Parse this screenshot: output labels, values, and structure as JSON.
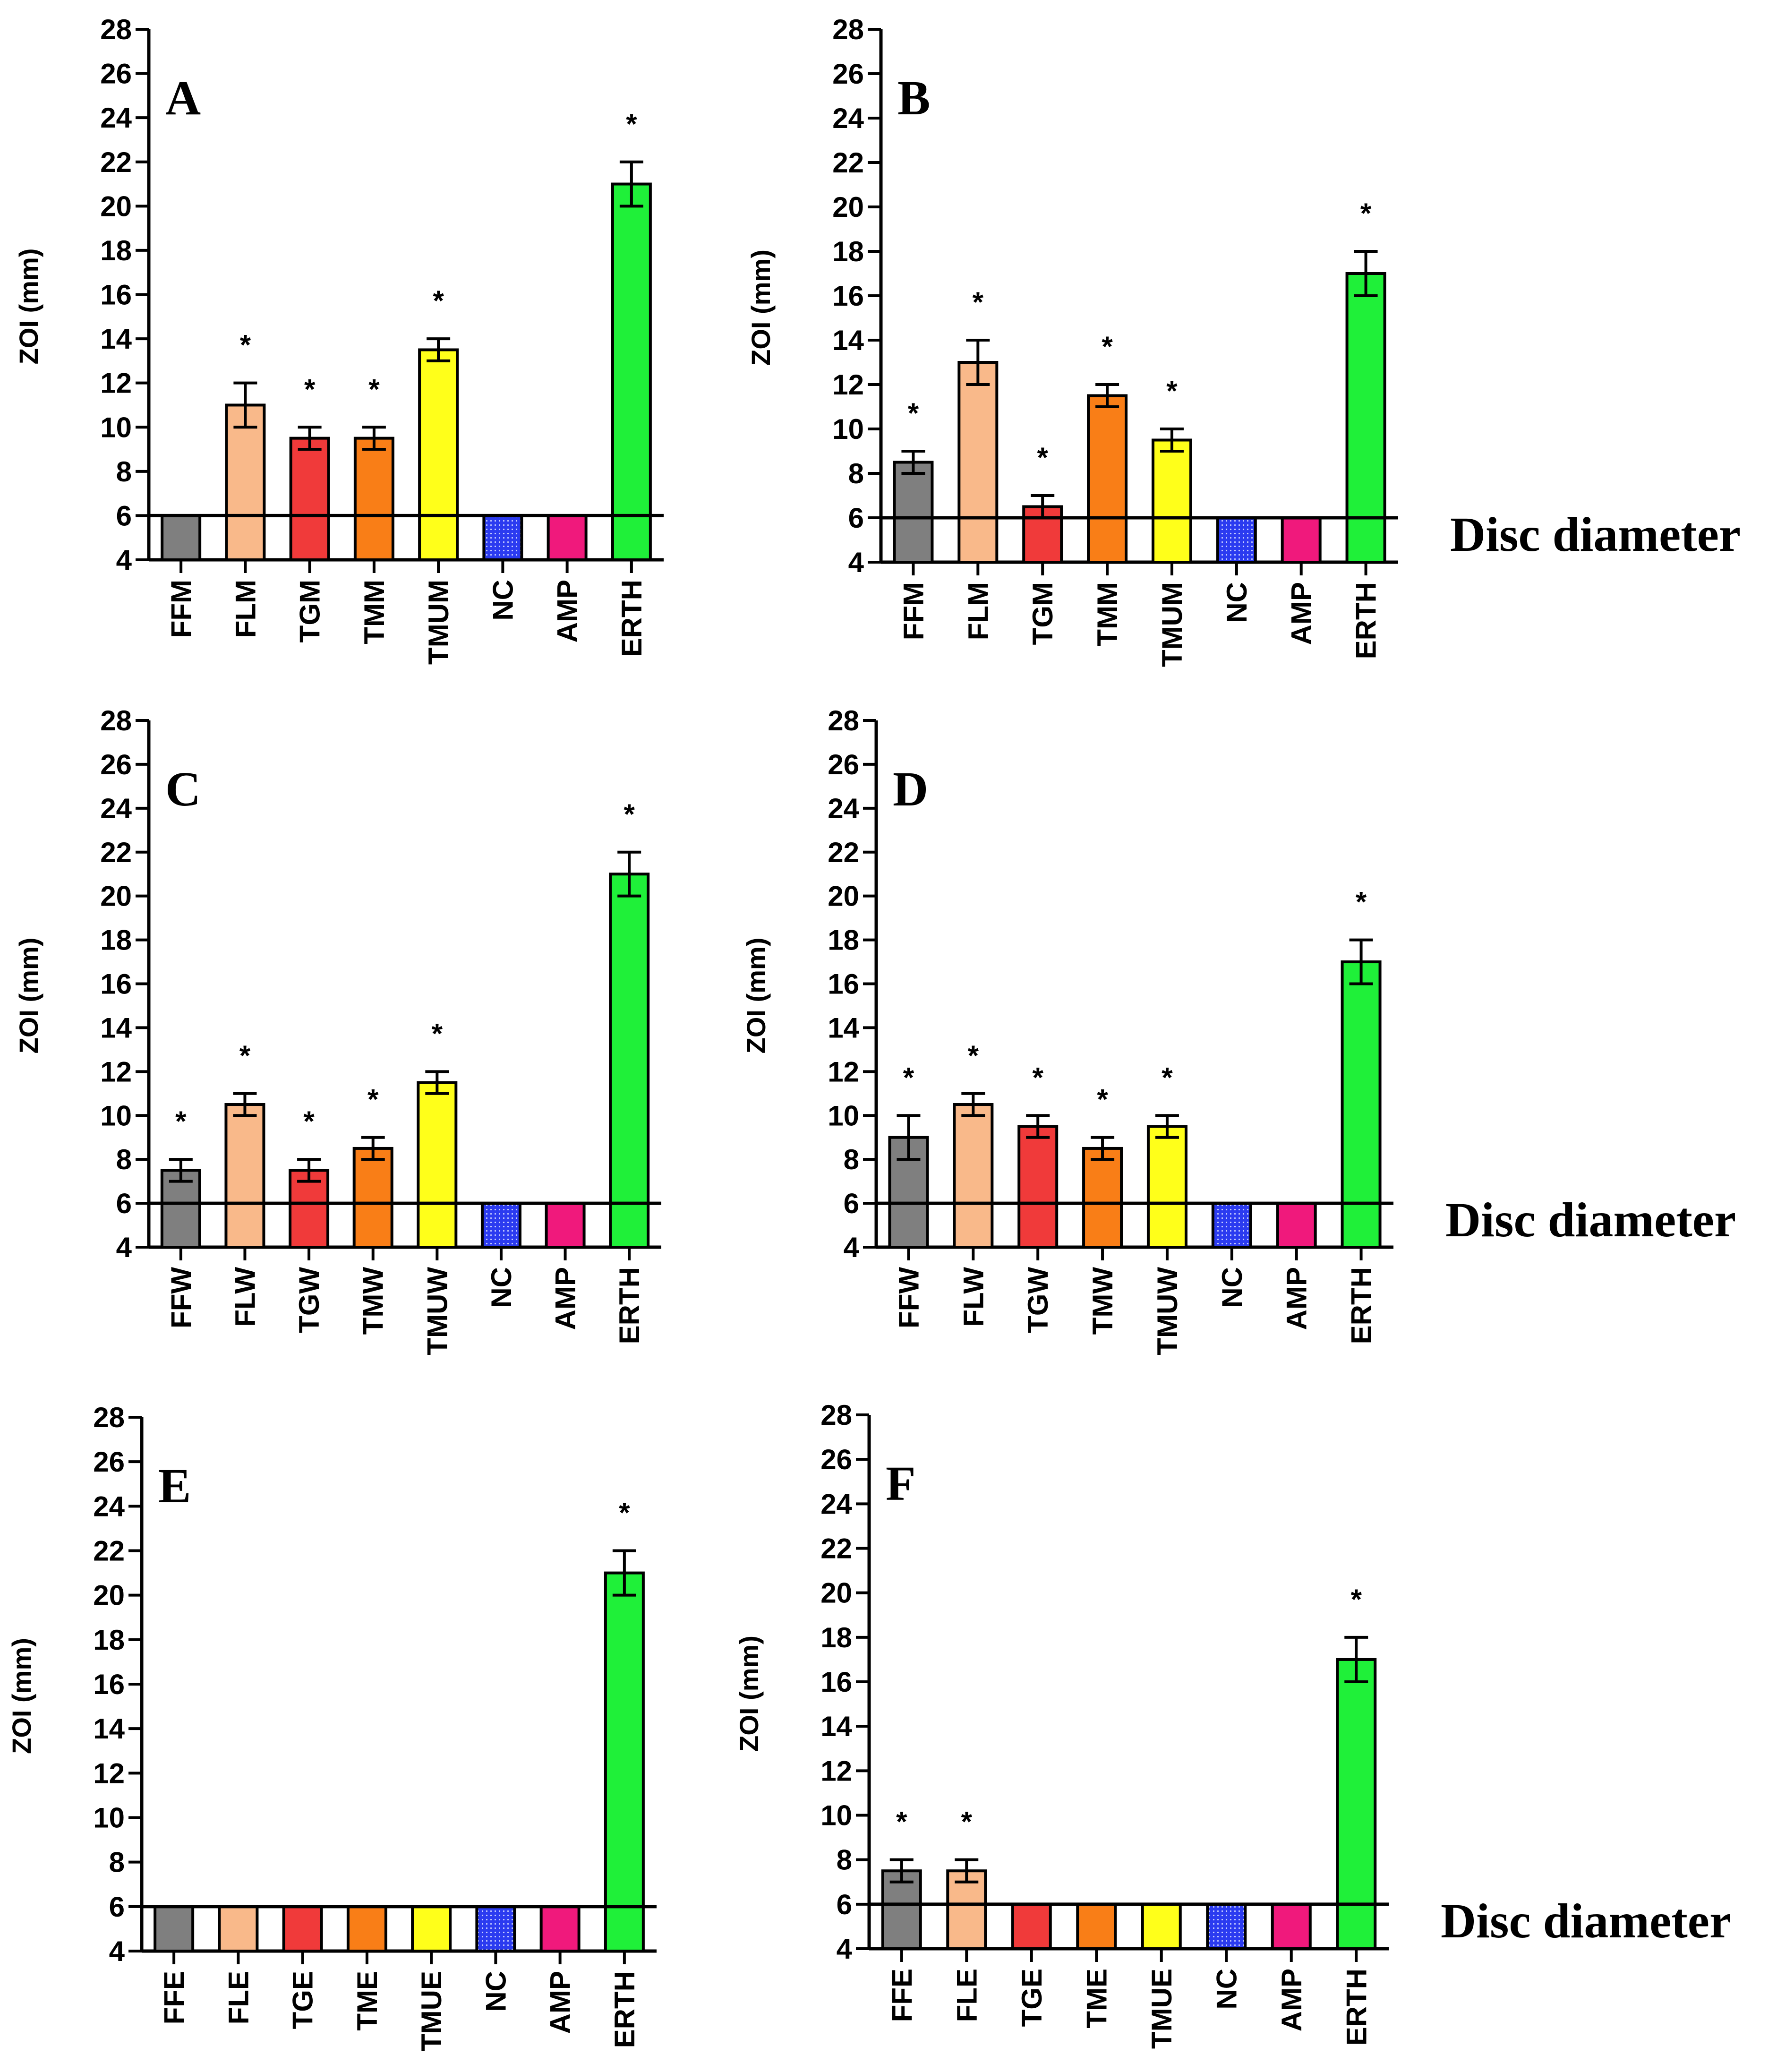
{
  "colors": {
    "gray": "#7f7f7f",
    "peach": "#f9b98a",
    "red": "#f03a3a",
    "orange": "#f97e17",
    "yellow": "#ffff1a",
    "blue": "#2b3bf0",
    "magenta": "#f0197c",
    "green": "#1ff039"
  },
  "disc_diameter_label": "Disc diameter",
  "chart_data": [
    {
      "panel": "A",
      "type": "bar",
      "ylabel": "ZOI (mm)",
      "ylim": [
        4,
        28
      ],
      "yticks": [
        "4",
        "6",
        "8",
        "10",
        "12",
        "14",
        "16",
        "18",
        "20",
        "22",
        "24",
        "26",
        "28"
      ],
      "reference_line": 6,
      "reference_label": false,
      "categories": [
        "FFM",
        "FLM",
        "TGM",
        "TMM",
        "TMUM",
        "NC",
        "AMP",
        "ERTH"
      ],
      "values": [
        6,
        11,
        9.5,
        9.5,
        13.5,
        6,
        6,
        21
      ],
      "errors": [
        0,
        1,
        0.5,
        0.5,
        0.5,
        0,
        0,
        1
      ],
      "significant": [
        false,
        true,
        true,
        true,
        true,
        false,
        false,
        true
      ],
      "significance_marker": "*",
      "bar_colors": [
        "gray",
        "peach",
        "red",
        "orange",
        "yellow",
        "blue",
        "magenta",
        "green"
      ]
    },
    {
      "panel": "B",
      "type": "bar",
      "ylabel": "ZOI (mm)",
      "ylim": [
        4,
        28
      ],
      "yticks": [
        "4",
        "6",
        "8",
        "10",
        "12",
        "14",
        "16",
        "18",
        "20",
        "22",
        "24",
        "26",
        "28"
      ],
      "reference_line": 6,
      "reference_label": true,
      "categories": [
        "FFM",
        "FLM",
        "TGM",
        "TMM",
        "TMUM",
        "NC",
        "AMP",
        "ERTH"
      ],
      "values": [
        8.5,
        13,
        6.5,
        11.5,
        9.5,
        6,
        6,
        17
      ],
      "errors": [
        0.5,
        1,
        0.5,
        0.5,
        0.5,
        0,
        0,
        1
      ],
      "significant": [
        true,
        true,
        true,
        true,
        true,
        false,
        false,
        true
      ],
      "significance_marker": "*",
      "bar_colors": [
        "gray",
        "peach",
        "red",
        "orange",
        "yellow",
        "blue",
        "magenta",
        "green"
      ]
    },
    {
      "panel": "C",
      "type": "bar",
      "ylabel": "ZOI (mm)",
      "ylim": [
        4,
        28
      ],
      "yticks": [
        "4",
        "6",
        "8",
        "10",
        "12",
        "14",
        "16",
        "18",
        "20",
        "22",
        "24",
        "26",
        "28"
      ],
      "reference_line": 6,
      "reference_label": false,
      "categories": [
        "FFW",
        "FLW",
        "TGW",
        "TMW",
        "TMUW",
        "NC",
        "AMP",
        "ERTH"
      ],
      "values": [
        7.5,
        10.5,
        7.5,
        8.5,
        11.5,
        6,
        6,
        21
      ],
      "errors": [
        0.5,
        0.5,
        0.5,
        0.5,
        0.5,
        0,
        0,
        1
      ],
      "significant": [
        true,
        true,
        true,
        true,
        true,
        false,
        false,
        true
      ],
      "significance_marker": "*",
      "bar_colors": [
        "gray",
        "peach",
        "red",
        "orange",
        "yellow",
        "blue",
        "magenta",
        "green"
      ]
    },
    {
      "panel": "D",
      "type": "bar",
      "ylabel": "ZOI (mm)",
      "ylim": [
        4,
        28
      ],
      "yticks": [
        "4",
        "6",
        "8",
        "10",
        "12",
        "14",
        "16",
        "18",
        "20",
        "22",
        "24",
        "26",
        "28"
      ],
      "reference_line": 6,
      "reference_label": true,
      "categories": [
        "FFW",
        "FLW",
        "TGW",
        "TMW",
        "TMUW",
        "NC",
        "AMP",
        "ERTH"
      ],
      "values": [
        9,
        10.5,
        9.5,
        8.5,
        9.5,
        6,
        6,
        17
      ],
      "errors": [
        1,
        0.5,
        0.5,
        0.5,
        0.5,
        0,
        0,
        1
      ],
      "significant": [
        true,
        true,
        true,
        true,
        true,
        false,
        false,
        true
      ],
      "significance_marker": "*",
      "bar_colors": [
        "gray",
        "peach",
        "red",
        "orange",
        "yellow",
        "blue",
        "magenta",
        "green"
      ]
    },
    {
      "panel": "E",
      "type": "bar",
      "ylabel": "ZOI (mm)",
      "ylim": [
        4,
        28
      ],
      "yticks": [
        "4",
        "6",
        "8",
        "10",
        "12",
        "14",
        "16",
        "18",
        "20",
        "22",
        "24",
        "26",
        "28"
      ],
      "reference_line": 6,
      "reference_label": false,
      "categories": [
        "FFE",
        "FLE",
        "TGE",
        "TME",
        "TMUE",
        "NC",
        "AMP",
        "ERTH"
      ],
      "values": [
        6,
        6,
        6,
        6,
        6,
        6,
        6,
        21
      ],
      "errors": [
        0,
        0,
        0,
        0,
        0,
        0,
        0,
        1
      ],
      "significant": [
        false,
        false,
        false,
        false,
        false,
        false,
        false,
        true
      ],
      "significance_marker": "*",
      "bar_colors": [
        "gray",
        "peach",
        "red",
        "orange",
        "yellow",
        "blue",
        "magenta",
        "green"
      ]
    },
    {
      "panel": "F",
      "type": "bar",
      "ylabel": "ZOI (mm)",
      "ylim": [
        4,
        28
      ],
      "yticks": [
        "4",
        "6",
        "8",
        "10",
        "12",
        "14",
        "16",
        "18",
        "20",
        "22",
        "24",
        "26",
        "28"
      ],
      "reference_line": 6,
      "reference_label": true,
      "categories": [
        "FFE",
        "FLE",
        "TGE",
        "TME",
        "TMUE",
        "NC",
        "AMP",
        "ERTH"
      ],
      "values": [
        7.5,
        7.5,
        6,
        6,
        6,
        6,
        6,
        17
      ],
      "errors": [
        0.5,
        0.5,
        0,
        0,
        0,
        0,
        0,
        1
      ],
      "significant": [
        true,
        true,
        false,
        false,
        false,
        false,
        false,
        true
      ],
      "significance_marker": "*",
      "bar_colors": [
        "gray",
        "peach",
        "red",
        "orange",
        "yellow",
        "blue",
        "magenta",
        "green"
      ]
    }
  ]
}
